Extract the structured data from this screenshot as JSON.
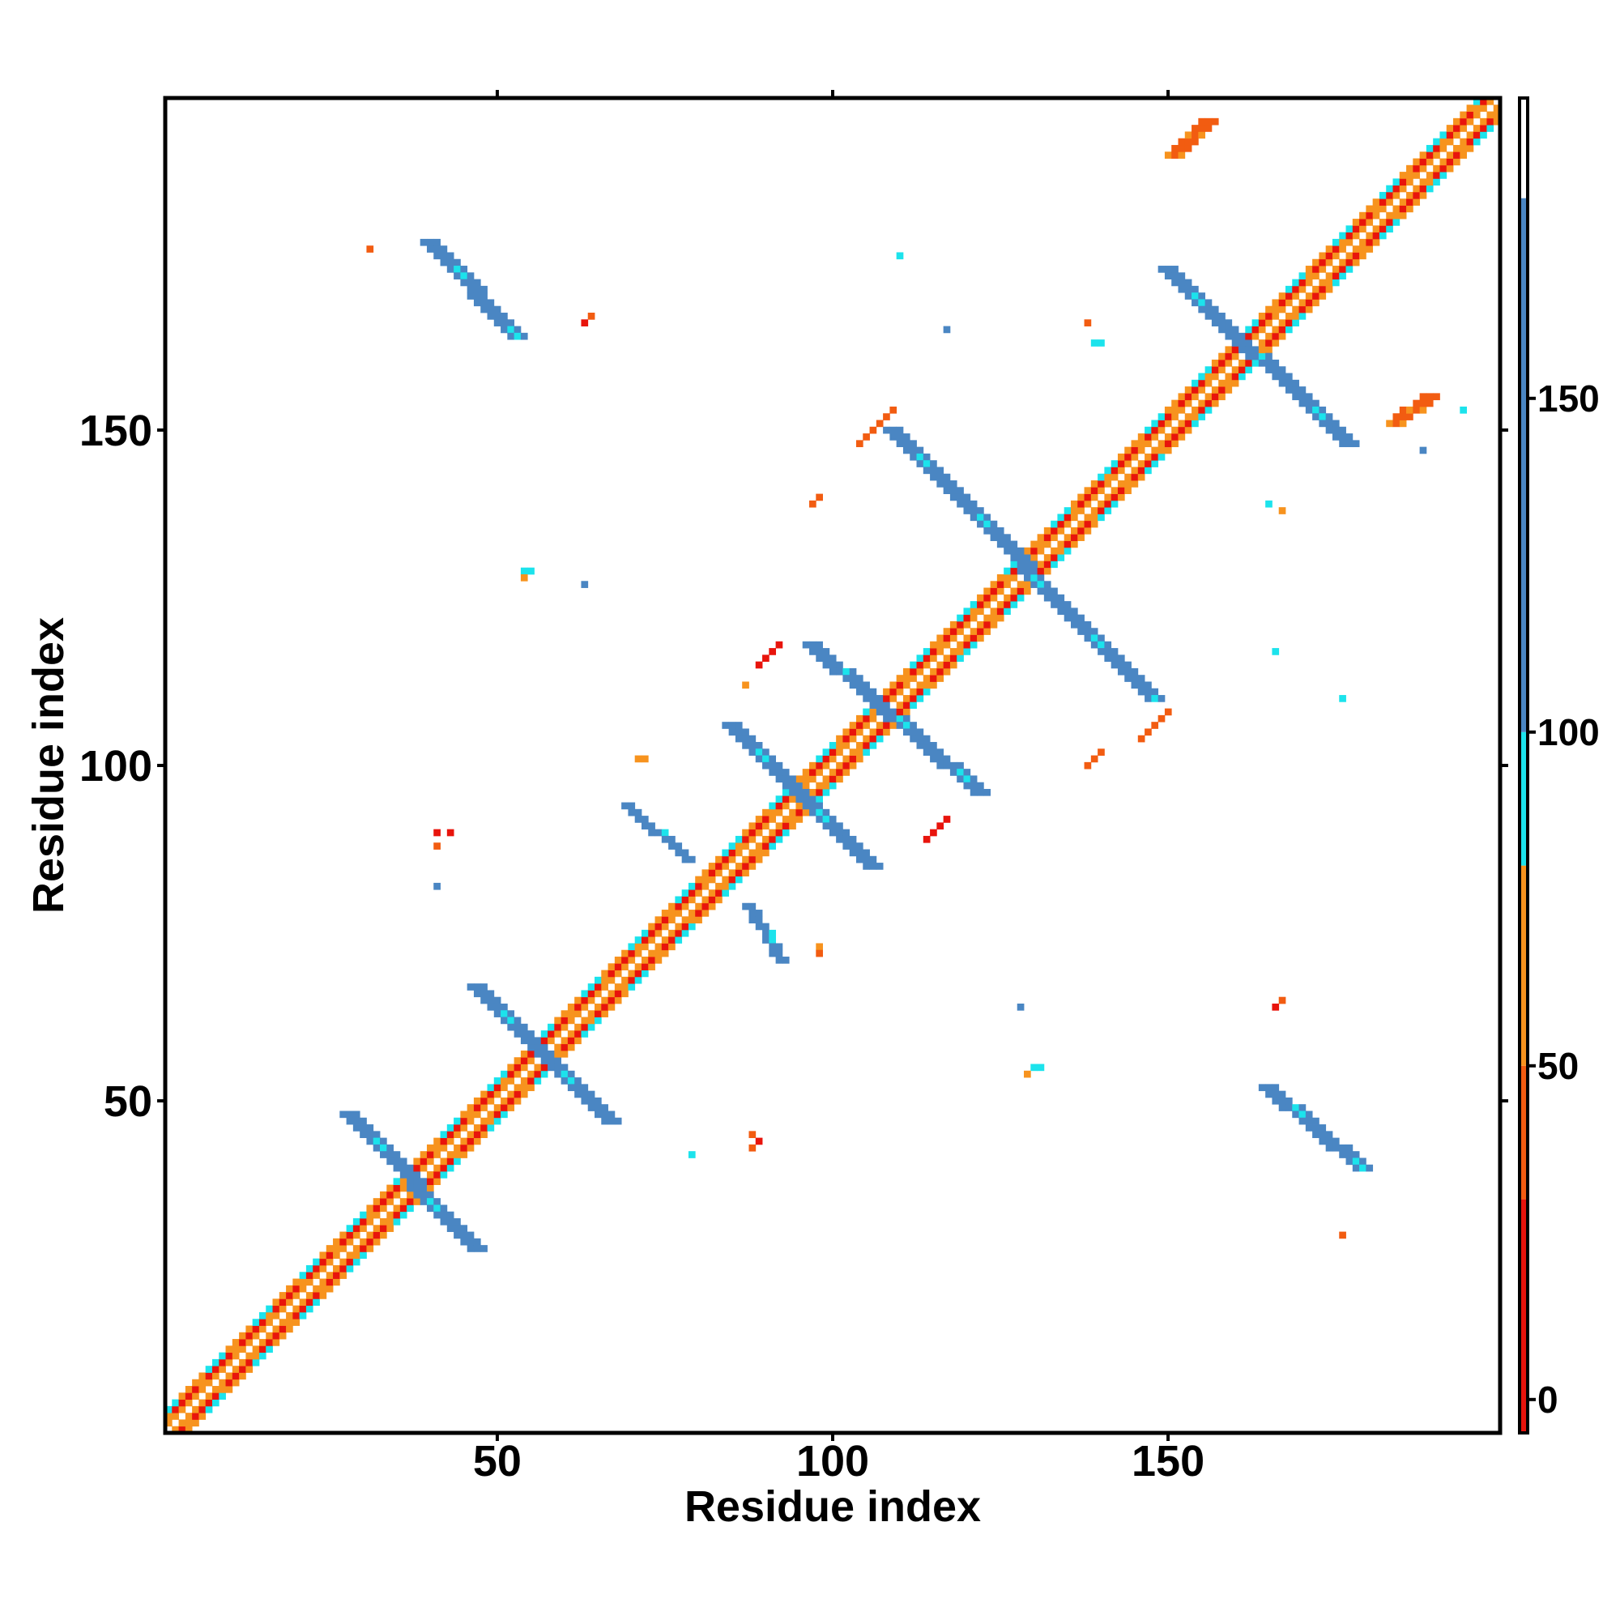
{
  "chart_data": {
    "type": "heatmap",
    "title": "",
    "xlabel": "Residue index",
    "ylabel": "Residue index",
    "xlim": [
      1,
      199
    ],
    "ylim": [
      1,
      199
    ],
    "x_ticks": [
      50,
      100,
      150
    ],
    "y_ticks": [
      50,
      100,
      150
    ],
    "grid": false,
    "colorbar": {
      "ticks": [
        0,
        50,
        100,
        150
      ],
      "range": [
        -5,
        195
      ],
      "bands": [
        {
          "from": -5,
          "to": 30,
          "color": "#e8140c"
        },
        {
          "from": 30,
          "to": 50,
          "color": "#f25c11"
        },
        {
          "from": 50,
          "to": 80,
          "color": "#f7931e"
        },
        {
          "from": 80,
          "to": 100,
          "color": "#1ce3ec"
        },
        {
          "from": 100,
          "to": 180,
          "color": "#4a86c3"
        },
        {
          "from": 180,
          "to": 195,
          "color": "#ffffff"
        }
      ]
    },
    "colors": {
      "red": "#e8140c",
      "orange_red": "#f25c11",
      "orange": "#f7931e",
      "cyan": "#1ce3ec",
      "blue": "#4a86c3"
    },
    "diagonal_range": [
      1,
      199
    ],
    "features": [
      {
        "kind": "band",
        "from": [
          28,
          48
        ],
        "to": [
          47,
          28
        ],
        "color": "blue",
        "width": 3
      },
      {
        "kind": "band",
        "from": [
          47,
          67
        ],
        "to": [
          67,
          47
        ],
        "color": "blue",
        "width": 3
      },
      {
        "kind": "band",
        "from": [
          85,
          106
        ],
        "to": [
          106,
          85
        ],
        "color": "blue",
        "width": 3
      },
      {
        "kind": "band",
        "from": [
          97,
          118
        ],
        "to": [
          122,
          96
        ],
        "color": "blue",
        "width": 3
      },
      {
        "kind": "band",
        "from": [
          109,
          150
        ],
        "to": [
          148,
          110
        ],
        "color": "blue",
        "width": 3
      },
      {
        "kind": "band",
        "from": [
          150,
          174
        ],
        "to": [
          177,
          148
        ],
        "color": "blue",
        "width": 3
      },
      {
        "kind": "band",
        "from": [
          40,
          178
        ],
        "to": [
          53,
          164
        ],
        "color": "blue",
        "width": 3
      },
      {
        "kind": "band",
        "from": [
          165,
          52
        ],
        "to": [
          179,
          40
        ],
        "color": "blue",
        "width": 3
      },
      {
        "kind": "band",
        "from": [
          70,
          94
        ],
        "to": [
          79,
          86
        ],
        "color": "blue",
        "width": 2
      },
      {
        "kind": "band",
        "from": [
          88,
          79
        ],
        "to": [
          93,
          71
        ],
        "color": "blue",
        "width": 2
      },
      {
        "kind": "band",
        "from": [
          151,
          191
        ],
        "to": [
          156,
          196
        ],
        "color": "orange_red",
        "width": 3
      },
      {
        "kind": "band",
        "from": [
          184,
          151
        ],
        "to": [
          189,
          155
        ],
        "color": "orange_red",
        "width": 3
      },
      {
        "kind": "band",
        "from": [
          89,
          115
        ],
        "to": [
          92,
          118
        ],
        "color": "red",
        "width": 1
      },
      {
        "kind": "band",
        "from": [
          114,
          89
        ],
        "to": [
          117,
          92
        ],
        "color": "red",
        "width": 1
      },
      {
        "kind": "band",
        "from": [
          104,
          148
        ],
        "to": [
          109,
          153
        ],
        "color": "orange_red",
        "width": 1
      },
      {
        "kind": "band",
        "from": [
          146,
          104
        ],
        "to": [
          150,
          108
        ],
        "color": "orange_red",
        "width": 1
      },
      {
        "kind": "cell",
        "x": 31,
        "y": 177,
        "color": "orange_red"
      },
      {
        "kind": "cell",
        "x": 63,
        "y": 166,
        "color": "red"
      },
      {
        "kind": "cell",
        "x": 64,
        "y": 167,
        "color": "orange_red"
      },
      {
        "kind": "cell",
        "x": 110,
        "y": 176,
        "color": "cyan"
      },
      {
        "kind": "cell",
        "x": 117,
        "y": 165,
        "color": "blue"
      },
      {
        "kind": "cell",
        "x": 138,
        "y": 166,
        "color": "orange_red"
      },
      {
        "kind": "cell",
        "x": 139,
        "y": 163,
        "color": "cyan"
      },
      {
        "kind": "cell",
        "x": 140,
        "y": 163,
        "color": "cyan"
      },
      {
        "kind": "cell",
        "x": 97,
        "y": 139,
        "color": "orange_red"
      },
      {
        "kind": "cell",
        "x": 98,
        "y": 140,
        "color": "orange_red"
      },
      {
        "kind": "cell",
        "x": 54,
        "y": 129,
        "color": "cyan"
      },
      {
        "kind": "cell",
        "x": 55,
        "y": 129,
        "color": "cyan"
      },
      {
        "kind": "cell",
        "x": 54,
        "y": 128,
        "color": "orange"
      },
      {
        "kind": "cell",
        "x": 63,
        "y": 127,
        "color": "blue"
      },
      {
        "kind": "cell",
        "x": 87,
        "y": 112,
        "color": "orange"
      },
      {
        "kind": "cell",
        "x": 71,
        "y": 101,
        "color": "orange"
      },
      {
        "kind": "cell",
        "x": 72,
        "y": 101,
        "color": "orange"
      },
      {
        "kind": "cell",
        "x": 41,
        "y": 90,
        "color": "red"
      },
      {
        "kind": "cell",
        "x": 43,
        "y": 90,
        "color": "red"
      },
      {
        "kind": "cell",
        "x": 41,
        "y": 88,
        "color": "orange_red"
      },
      {
        "kind": "cell",
        "x": 41,
        "y": 82,
        "color": "blue"
      },
      {
        "kind": "cell",
        "x": 79,
        "y": 42,
        "color": "cyan"
      },
      {
        "kind": "cell",
        "x": 88,
        "y": 43,
        "color": "orange_red"
      },
      {
        "kind": "cell",
        "x": 89,
        "y": 44,
        "color": "red"
      },
      {
        "kind": "cell",
        "x": 88,
        "y": 45,
        "color": "orange_red"
      },
      {
        "kind": "cell",
        "x": 98,
        "y": 73,
        "color": "orange"
      },
      {
        "kind": "cell",
        "x": 98,
        "y": 72,
        "color": "orange_red"
      },
      {
        "kind": "cell",
        "x": 128,
        "y": 64,
        "color": "blue"
      },
      {
        "kind": "cell",
        "x": 130,
        "y": 55,
        "color": "cyan"
      },
      {
        "kind": "cell",
        "x": 131,
        "y": 55,
        "color": "cyan"
      },
      {
        "kind": "cell",
        "x": 129,
        "y": 54,
        "color": "orange"
      },
      {
        "kind": "cell",
        "x": 138,
        "y": 100,
        "color": "orange_red"
      },
      {
        "kind": "cell",
        "x": 139,
        "y": 101,
        "color": "orange_red"
      },
      {
        "kind": "cell",
        "x": 140,
        "y": 102,
        "color": "orange_red"
      },
      {
        "kind": "cell",
        "x": 167,
        "y": 138,
        "color": "orange"
      },
      {
        "kind": "cell",
        "x": 165,
        "y": 139,
        "color": "cyan"
      },
      {
        "kind": "cell",
        "x": 166,
        "y": 117,
        "color": "cyan"
      },
      {
        "kind": "cell",
        "x": 176,
        "y": 110,
        "color": "cyan"
      },
      {
        "kind": "cell",
        "x": 166,
        "y": 64,
        "color": "red"
      },
      {
        "kind": "cell",
        "x": 167,
        "y": 65,
        "color": "orange_red"
      },
      {
        "kind": "cell",
        "x": 176,
        "y": 30,
        "color": "orange_red"
      },
      {
        "kind": "cell",
        "x": 188,
        "y": 147,
        "color": "blue"
      },
      {
        "kind": "cell",
        "x": 194,
        "y": 153,
        "color": "cyan"
      }
    ]
  }
}
